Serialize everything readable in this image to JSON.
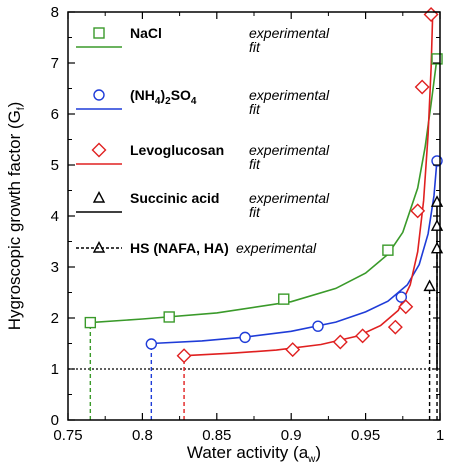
{
  "chart_data": {
    "type": "scatter",
    "title": "",
    "xlabel": "Water activity (a",
    "xlabel_sub": "w",
    "xlabel_end": ")",
    "ylabel": "Hygroscopic growth factor (G",
    "ylabel_sub": "f",
    "ylabel_end": ")",
    "xlim": [
      0.75,
      1.0
    ],
    "ylim": [
      0,
      8
    ],
    "x_ticks": [
      0.75,
      0.8,
      0.85,
      0.9,
      0.95,
      1.0
    ],
    "x_tick_labels": [
      "0.75",
      "0.8",
      "0.85",
      "0.9",
      "0.95",
      "1"
    ],
    "y_ticks": [
      0,
      1,
      2,
      3,
      4,
      5,
      6,
      7,
      8
    ],
    "y_tick_labels": [
      "0",
      "1",
      "2",
      "3",
      "4",
      "5",
      "6",
      "7",
      "8"
    ],
    "grid": false,
    "legend_position": "top-left",
    "reference_line": {
      "y": 1.0,
      "style": "dotted",
      "color": "#000000"
    },
    "legend": {
      "experimental_label": "experimental",
      "fit_label": "fit"
    },
    "series": [
      {
        "name": "NaCl",
        "color": "#3a9a2a",
        "marker": "square",
        "drop_x": 0.765,
        "points": [
          [
            0.765,
            1.91
          ],
          [
            0.818,
            2.02
          ],
          [
            0.895,
            2.37
          ],
          [
            0.965,
            3.33
          ],
          [
            0.998,
            7.08
          ]
        ],
        "fit": [
          [
            0.765,
            1.91
          ],
          [
            0.8,
            1.98
          ],
          [
            0.85,
            2.1
          ],
          [
            0.9,
            2.32
          ],
          [
            0.93,
            2.58
          ],
          [
            0.95,
            2.88
          ],
          [
            0.965,
            3.25
          ],
          [
            0.975,
            3.68
          ],
          [
            0.985,
            4.55
          ],
          [
            0.99,
            5.35
          ],
          [
            0.994,
            6.2
          ],
          [
            0.998,
            7.1
          ]
        ]
      },
      {
        "name": "(NH4)2SO4",
        "name_parts": [
          "(NH",
          "4",
          ")",
          "2",
          "SO",
          "4"
        ],
        "color": "#1f3cd8",
        "marker": "circle",
        "drop_x": 0.806,
        "points": [
          [
            0.806,
            1.49
          ],
          [
            0.869,
            1.62
          ],
          [
            0.918,
            1.84
          ],
          [
            0.974,
            2.41
          ],
          [
            0.998,
            5.08
          ]
        ],
        "fit": [
          [
            0.806,
            1.5
          ],
          [
            0.84,
            1.55
          ],
          [
            0.87,
            1.63
          ],
          [
            0.9,
            1.74
          ],
          [
            0.93,
            1.92
          ],
          [
            0.95,
            2.12
          ],
          [
            0.965,
            2.33
          ],
          [
            0.978,
            2.65
          ],
          [
            0.986,
            3.05
          ],
          [
            0.992,
            3.65
          ],
          [
            0.996,
            4.4
          ],
          [
            0.998,
            5.1
          ]
        ]
      },
      {
        "name": "Levoglucosan",
        "color": "#e02020",
        "marker": "diamond",
        "drop_x": 0.828,
        "points": [
          [
            0.828,
            1.26
          ],
          [
            0.901,
            1.38
          ],
          [
            0.933,
            1.53
          ],
          [
            0.948,
            1.65
          ],
          [
            0.97,
            1.82
          ],
          [
            0.977,
            2.22
          ],
          [
            0.985,
            4.1
          ],
          [
            0.988,
            6.53
          ],
          [
            0.994,
            7.95
          ]
        ],
        "fit": [
          [
            0.828,
            1.26
          ],
          [
            0.86,
            1.31
          ],
          [
            0.89,
            1.37
          ],
          [
            0.92,
            1.48
          ],
          [
            0.945,
            1.65
          ],
          [
            0.96,
            1.85
          ],
          [
            0.972,
            2.15
          ],
          [
            0.98,
            2.65
          ],
          [
            0.985,
            3.3
          ],
          [
            0.989,
            4.3
          ],
          [
            0.992,
            5.6
          ],
          [
            0.994,
            6.9
          ],
          [
            0.995,
            7.9
          ]
        ]
      },
      {
        "name": "Succinic acid",
        "color": "#000000",
        "marker": "triangle",
        "drop_x": 0.998,
        "points": [
          [
            0.998,
            3.36
          ],
          [
            0.998,
            3.8
          ],
          [
            0.998,
            4.27
          ]
        ],
        "fit": [
          [
            0.998,
            1.0
          ],
          [
            0.998,
            4.3
          ]
        ]
      },
      {
        "name": "HS (NAFA, HA)",
        "color": "#000000",
        "marker": "triangle",
        "drop_x": 0.993,
        "points": [
          [
            0.993,
            2.62
          ]
        ],
        "fit": []
      }
    ]
  }
}
